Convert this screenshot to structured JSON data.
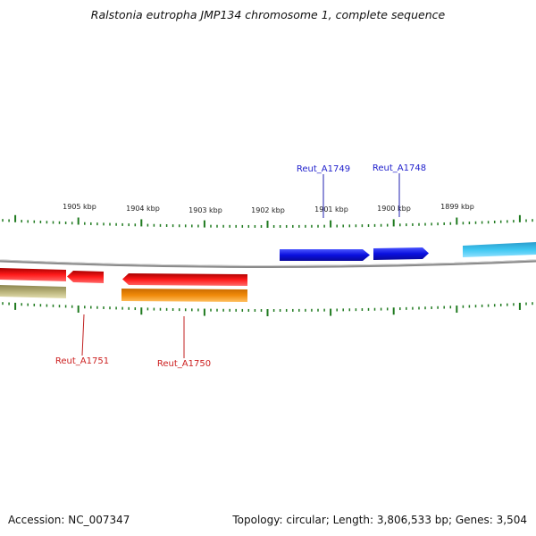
{
  "title": "Ralstonia eutropha JMP134 chromosome 1, complete sequence",
  "footer": {
    "accession": "Accession: NC_007347",
    "summary": "Topology: circular; Length: 3,806,533 bp; Genes: 3,504"
  },
  "ruler_labels": [
    "1905 kbp",
    "1904 kbp",
    "1903 kbp",
    "1902 kbp",
    "1901 kbp",
    "1900 kbp",
    "1899 kbp"
  ],
  "genes": [
    {
      "id": "Reut_A1749",
      "strand": "forward",
      "color": "#1f1fcc"
    },
    {
      "id": "Reut_A1748",
      "strand": "forward",
      "color": "#1f1fcc"
    },
    {
      "id": "Reut_A1751",
      "strand": "reverse",
      "color": "#cc1f1f"
    },
    {
      "id": "Reut_A1750",
      "strand": "reverse",
      "color": "#cc1f1f"
    }
  ],
  "colors": {
    "forward_cds": "#0a10e0",
    "reverse_cds": "#ee1010",
    "forward_rna": "#29b3e6",
    "reverse_misc": "#b8b27a",
    "reverse_orange": "#f08a0a",
    "tick": "#1f7a1f",
    "backbone": "#808080"
  }
}
